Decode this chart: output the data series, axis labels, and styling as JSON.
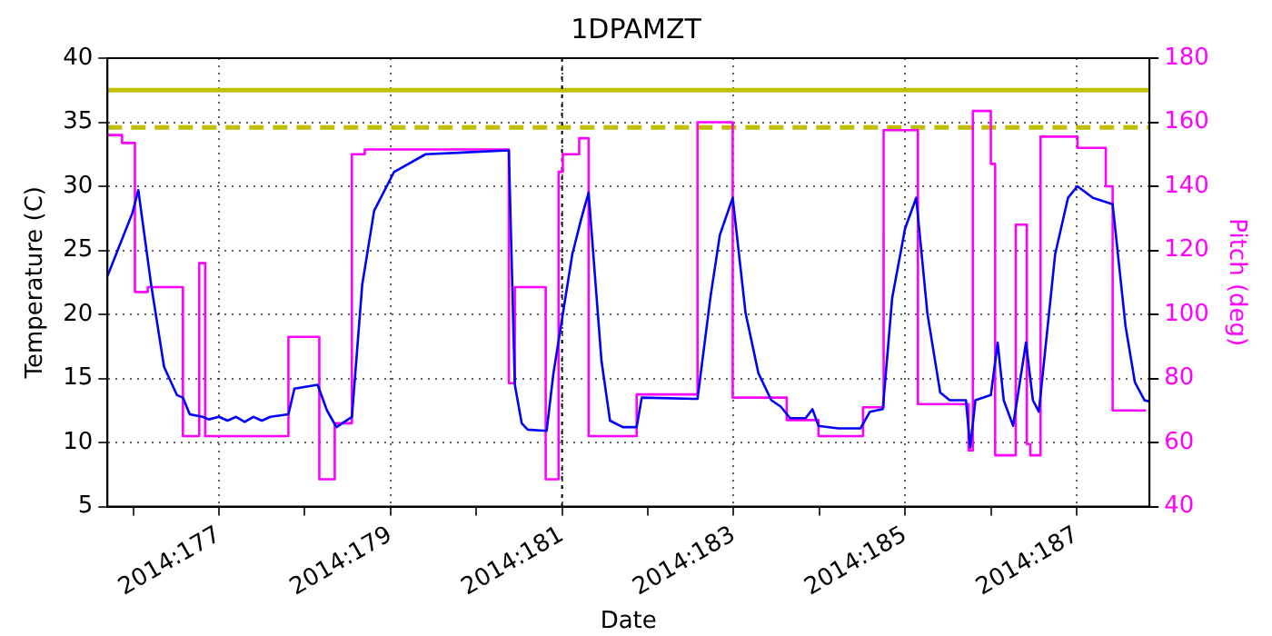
{
  "chart_data": {
    "type": "line",
    "title": "1DPAMZT",
    "xlabel": "Date",
    "ylabel": "Temperature (C)",
    "y2label": "Pitch (deg)",
    "xlim": [
      "2014-06-24T16:48",
      "2014-07-06T20:24"
    ],
    "xticks": [
      {
        "value": "2014-06-25",
        "label": null
      },
      {
        "value": "2014-06-26",
        "label": "2014:177"
      },
      {
        "value": "2014-06-27",
        "label": null
      },
      {
        "value": "2014-06-28",
        "label": "2014:179"
      },
      {
        "value": "2014-06-29",
        "label": null
      },
      {
        "value": "2014-06-30",
        "label": "2014:181"
      },
      {
        "value": "2014-07-01",
        "label": null
      },
      {
        "value": "2014-07-02",
        "label": "2014:183"
      },
      {
        "value": "2014-07-03",
        "label": null
      },
      {
        "value": "2014-07-04",
        "label": "2014:185"
      },
      {
        "value": "2014-07-05",
        "label": null
      },
      {
        "value": "2014-07-06",
        "label": "2014:187"
      }
    ],
    "ylim": [
      5,
      40
    ],
    "yticks": [
      5,
      10,
      15,
      20,
      25,
      30,
      35,
      40
    ],
    "y2lim": [
      40,
      180
    ],
    "y2ticks": [
      40,
      60,
      80,
      100,
      120,
      140,
      160,
      180
    ],
    "grid": true,
    "legend": false,
    "marker": "none",
    "ref_lines": [
      {
        "axis": "y",
        "value": 37.5,
        "color": "#bfbf00",
        "line_style": "solid"
      },
      {
        "axis": "y",
        "value": 34.6,
        "color": "#bfbf00",
        "line_style": "dashed"
      },
      {
        "axis": "x",
        "value": "2014-06-30",
        "color": "#000000",
        "line_style": "dotted"
      }
    ],
    "series": [
      {
        "color": "#0000ff",
        "x": [
          "2014-06-24T16:48",
          "2014-06-24T23:46",
          "2014-06-25T01:26",
          "2014-06-25T05:02",
          "2014-06-25T08:38",
          "2014-06-25T12:14",
          "2014-06-25T13:55",
          "2014-06-25T15:50",
          "2014-06-25T19:26",
          "2014-06-25T21:07",
          "2014-06-26T00:00",
          "2014-06-26T02:24",
          "2014-06-26T04:48",
          "2014-06-26T07:12",
          "2014-06-26T09:36",
          "2014-06-26T12:00",
          "2014-06-26T14:24",
          "2014-06-26T19:26",
          "2014-06-26T21:07",
          "2014-06-27T03:36",
          "2014-06-27T06:14",
          "2014-06-27T08:53",
          "2014-06-27T13:12",
          "2014-06-27T16:05",
          "2014-06-27T19:26",
          "2014-06-28T00:58",
          "2014-06-28T09:50",
          "2014-06-29T09:07",
          "2014-06-29T10:48",
          "2014-06-29T12:43",
          "2014-06-29T14:24",
          "2014-06-29T19:41",
          "2014-06-29T21:36",
          "2014-06-30T02:53",
          "2014-06-30T05:31",
          "2014-06-30T07:26",
          "2014-06-30T11:02",
          "2014-06-30T13:26",
          "2014-06-30T17:02",
          "2014-06-30T20:53",
          "2014-06-30T22:19",
          "2014-07-01T13:55",
          "2014-07-01T17:31",
          "2014-07-01T20:10",
          "2014-07-01T23:46",
          "2014-07-02T03:22",
          "2014-07-02T06:58",
          "2014-07-02T10:34",
          "2014-07-02T13:12",
          "2014-07-02T15:50",
          "2014-07-02T20:10",
          "2014-07-02T22:05",
          "2014-07-02T23:46",
          "2014-07-03T05:17",
          "2014-07-03T11:31",
          "2014-07-03T14:10",
          "2014-07-03T17:46",
          "2014-07-03T20:24",
          "2014-07-04T00:00",
          "2014-07-04T03:07",
          "2014-07-04T06:14",
          "2014-07-04T09:50",
          "2014-07-04T12:29",
          "2014-07-04T17:02",
          "2014-07-04T18:14",
          "2014-07-04T19:41",
          "2014-07-05T00:00",
          "2014-07-05T01:55",
          "2014-07-05T03:36",
          "2014-07-05T06:14",
          "2014-07-05T09:50",
          "2014-07-05T11:46",
          "2014-07-05T13:26",
          "2014-07-05T18:00",
          "2014-07-05T21:36",
          "2014-07-06T00:14",
          "2014-07-06T04:34",
          "2014-07-06T10:05",
          "2014-07-06T13:41",
          "2014-07-06T16:19",
          "2014-07-06T18:58",
          "2014-07-06T20:24"
        ],
        "values": [
          23.0,
          27.9,
          29.7,
          22.3,
          15.9,
          13.7,
          13.5,
          12.2,
          12.0,
          11.8,
          12.0,
          11.7,
          12.0,
          11.6,
          12.0,
          11.7,
          12.0,
          12.2,
          14.2,
          14.5,
          12.5,
          11.2,
          12.0,
          22.3,
          28.1,
          31.1,
          32.5,
          32.8,
          14.5,
          11.5,
          11.0,
          10.9,
          15.4,
          24.7,
          27.6,
          29.5,
          16.4,
          11.7,
          11.2,
          11.2,
          13.5,
          13.4,
          21.3,
          26.2,
          29.1,
          20.1,
          15.4,
          13.3,
          12.8,
          11.9,
          11.9,
          12.6,
          11.3,
          11.1,
          11.1,
          12.4,
          12.6,
          21.3,
          26.7,
          29.1,
          20.1,
          13.9,
          13.3,
          13.3,
          9.6,
          13.3,
          13.7,
          17.8,
          13.3,
          11.3,
          17.8,
          13.3,
          12.4,
          24.7,
          29.1,
          30.0,
          29.1,
          28.6,
          19.1,
          14.7,
          13.3,
          13.2
        ]
      },
      {
        "type": "step",
        "color": "#ff00ff",
        "axis": "y2",
        "x": [
          "2014-06-24T16:48",
          "2014-06-24T20:53",
          "2014-06-25T00:29",
          "2014-06-25T04:05",
          "2014-06-25T13:55",
          "2014-06-25T18:29",
          "2014-06-25T20:10",
          "2014-06-26T19:26",
          "2014-06-27T04:05",
          "2014-06-27T08:24",
          "2014-06-27T13:12",
          "2014-06-27T16:48",
          "2014-06-29T09:07",
          "2014-06-29T10:48",
          "2014-06-29T19:26",
          "2014-06-29T23:02",
          "2014-06-30T00:14",
          "2014-06-30T04:48",
          "2014-06-30T07:26",
          "2014-06-30T20:53",
          "2014-07-01T13:55",
          "2014-07-01T23:46",
          "2014-07-02T14:53",
          "2014-07-02T23:46",
          "2014-07-03T12:14",
          "2014-07-03T18:00",
          "2014-07-04T03:36",
          "2014-07-04T17:46",
          "2014-07-04T18:58",
          "2014-07-05T00:00",
          "2014-07-05T01:12",
          "2014-07-05T06:58",
          "2014-07-05T10:05",
          "2014-07-05T11:02",
          "2014-07-05T13:55",
          "2014-07-06T00:14",
          "2014-07-06T08:10",
          "2014-07-06T10:05",
          "2014-07-06T19:26"
        ],
        "values": [
          156,
          153.5,
          107,
          108.5,
          62,
          116,
          62,
          93,
          48.5,
          66,
          150,
          151.5,
          78.5,
          108.5,
          48.5,
          144.5,
          150,
          155,
          62,
          75,
          160,
          74,
          67,
          62,
          71,
          157.5,
          72,
          57.5,
          163.5,
          147,
          56,
          128,
          59.5,
          56,
          155.5,
          152,
          140,
          70,
          70
        ]
      }
    ]
  }
}
